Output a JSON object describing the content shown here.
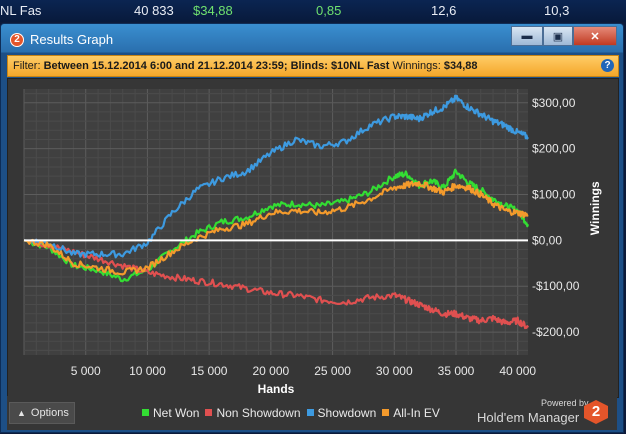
{
  "background_row": {
    "name": "NL Fas",
    "hands": "40 833",
    "winnings": "$34,88",
    "bb100": "0,85",
    "col4": "12,6",
    "col5": "10,3"
  },
  "window": {
    "title": "Results Graph",
    "app_icon_label": "2",
    "buttons": [
      "minimize",
      "restore",
      "close"
    ]
  },
  "filter": {
    "prefix": "Filter:",
    "text": "Between 15.12.2014 6:00 and 21.12.2014 23:59; Blinds: $10NL Fast",
    "winnings_label": "Winnings:",
    "winnings_value": "$34,88",
    "help_label": "?"
  },
  "bottom": {
    "options_label": "Options",
    "powered_by": "Powered by",
    "brand_name": "Hold'em Manager",
    "brand_logo": "2"
  },
  "colors": {
    "net_won": "#33dd33",
    "non_showdown": "#e05050",
    "showdown": "#3d9ae0",
    "allin_ev": "#f39a2c",
    "zero_line": "#ffffff"
  },
  "chart_data": {
    "type": "line",
    "xlabel": "Hands",
    "ylabel": "Winnings",
    "x_ticks": [
      5000,
      10000,
      15000,
      20000,
      25000,
      30000,
      35000,
      40000
    ],
    "x_tick_labels": [
      "5 000",
      "10 000",
      "15 000",
      "20 000",
      "25 000",
      "30 000",
      "35 000",
      "40 000"
    ],
    "y_ticks": [
      -200,
      -100,
      0,
      100,
      200,
      300
    ],
    "y_tick_labels": [
      "-$200,00",
      "-$100,00",
      "$0,00",
      "$100,00",
      "$200,00",
      "$300,00"
    ],
    "xlim": [
      0,
      40833
    ],
    "ylim": [
      -250,
      330
    ],
    "grid": true,
    "legend_position": "bottom",
    "x": [
      0,
      2000,
      4000,
      6000,
      8000,
      10000,
      12000,
      14000,
      16000,
      18000,
      20000,
      22000,
      24000,
      26000,
      28000,
      30000,
      31000,
      32000,
      33000,
      34000,
      35000,
      36000,
      37000,
      38000,
      39000,
      40000,
      40833
    ],
    "series": [
      {
        "name": "Net Won",
        "color": "#33dd33",
        "values": [
          0,
          -15,
          -55,
          -65,
          -85,
          -65,
          -20,
          15,
          40,
          50,
          75,
          80,
          75,
          85,
          105,
          140,
          145,
          120,
          130,
          115,
          150,
          125,
          110,
          90,
          75,
          65,
          35
        ]
      },
      {
        "name": "Non Showdown",
        "color": "#e05050",
        "values": [
          0,
          -10,
          -25,
          -40,
          -55,
          -70,
          -80,
          -88,
          -95,
          -105,
          -115,
          -120,
          -130,
          -135,
          -125,
          -120,
          -130,
          -140,
          -150,
          -160,
          -160,
          -170,
          -175,
          -170,
          -180,
          -175,
          -190
        ]
      },
      {
        "name": "Showdown",
        "color": "#3d9ae0",
        "values": [
          0,
          -5,
          -30,
          -30,
          -30,
          -5,
          60,
          110,
          135,
          150,
          190,
          220,
          205,
          215,
          250,
          270,
          270,
          265,
          280,
          290,
          310,
          290,
          275,
          260,
          250,
          235,
          225
        ]
      },
      {
        "name": "All-In EV",
        "color": "#f39a2c",
        "values": [
          0,
          -10,
          -50,
          -60,
          -70,
          -60,
          -25,
          5,
          25,
          35,
          60,
          65,
          60,
          70,
          90,
          115,
          120,
          125,
          115,
          105,
          120,
          115,
          100,
          80,
          65,
          60,
          55
        ]
      }
    ]
  }
}
